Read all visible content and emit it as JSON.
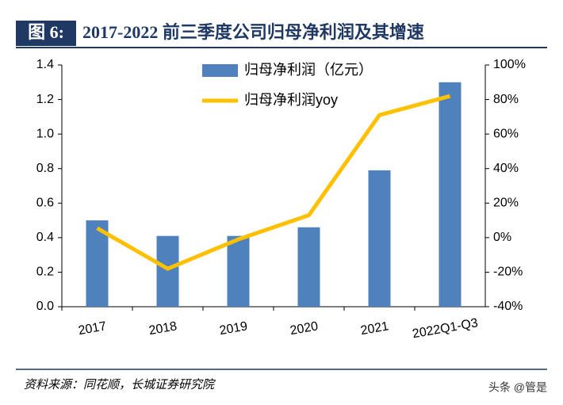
{
  "header": {
    "label": "图 6:",
    "title": "2017-2022 前三季度公司归母净利润及其增速"
  },
  "chart_data": {
    "type": "bar-line",
    "categories": [
      "2017",
      "2018",
      "2019",
      "2020",
      "2021",
      "2022Q1-Q3"
    ],
    "series": [
      {
        "name": "归母净利润（亿元）",
        "color": "#4f81bd",
        "type": "bar",
        "values": [
          0.5,
          0.41,
          0.41,
          0.46,
          0.79,
          1.3
        ]
      },
      {
        "name": "归母净利润yoy",
        "color": "#ffc000",
        "type": "line",
        "axis": "y2",
        "values": [
          5.5,
          -18,
          -1,
          13,
          71,
          82
        ]
      }
    ],
    "ylim": [
      0,
      1.4
    ],
    "yticks": [
      {
        "value": 0,
        "label": "0.0"
      },
      0.2,
      0.4,
      0.6,
      0.8,
      {
        "value": 1,
        "label": "1.0"
      },
      1.2,
      1.4
    ],
    "y2lim": [
      -40,
      100
    ],
    "y2ticks": [
      {
        "value": -40,
        "label": "-40%"
      },
      {
        "value": -20,
        "label": "-20%"
      },
      {
        "value": 0,
        "label": "0%"
      },
      {
        "value": 20,
        "label": "20%"
      },
      {
        "value": 40,
        "label": "40%"
      },
      {
        "value": 60,
        "label": "60%"
      },
      {
        "value": 80,
        "label": "80%"
      },
      {
        "value": 100,
        "label": "100%"
      }
    ]
  },
  "footer": {
    "source": "资料来源：同花顺，长城证券研究院",
    "watermark": "头条 @管是"
  }
}
